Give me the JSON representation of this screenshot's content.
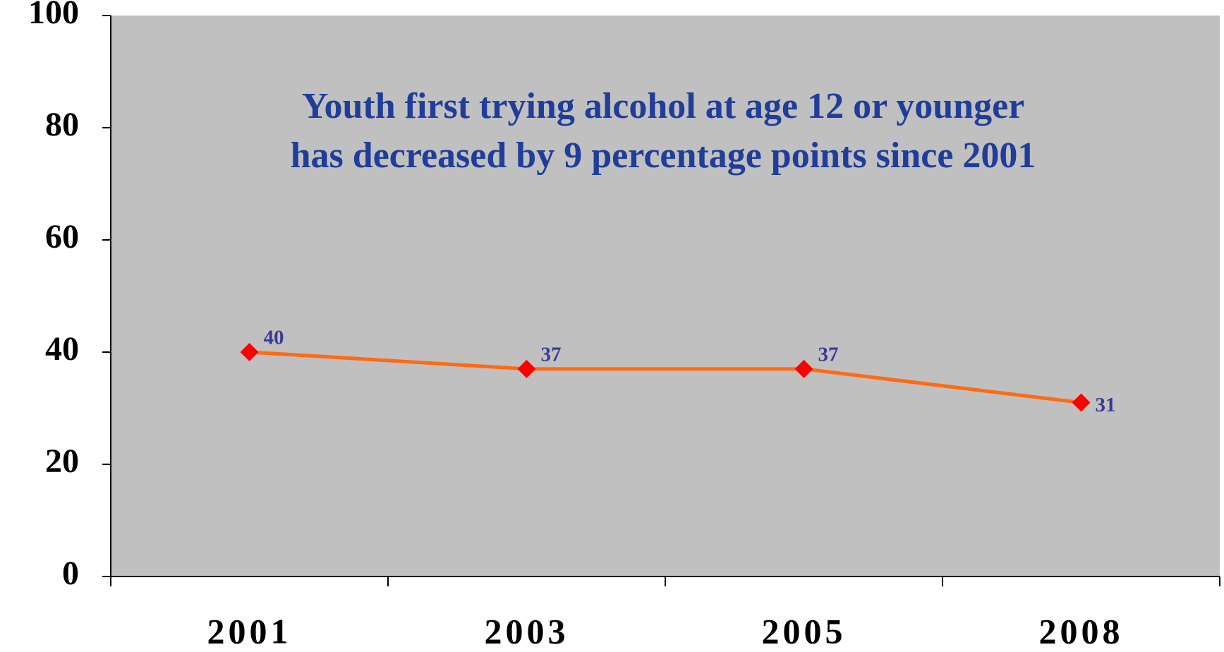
{
  "chart_data": {
    "type": "line",
    "title": [
      "Youth first trying alcohol at age 12 or younger",
      "has decreased by 9 percentage points since 2001"
    ],
    "categories": [
      "2001",
      "2003",
      "2005",
      "2008"
    ],
    "series": [
      {
        "name": "Youth first trying alcohol at age 12 or younger",
        "color": "#ff6a13",
        "marker_color": "#ff0000",
        "values": [
          40,
          37,
          37,
          31
        ]
      }
    ],
    "ylim": [
      0,
      100
    ],
    "yticks": [
      0,
      20,
      40,
      60,
      80,
      100
    ],
    "grid": false
  }
}
